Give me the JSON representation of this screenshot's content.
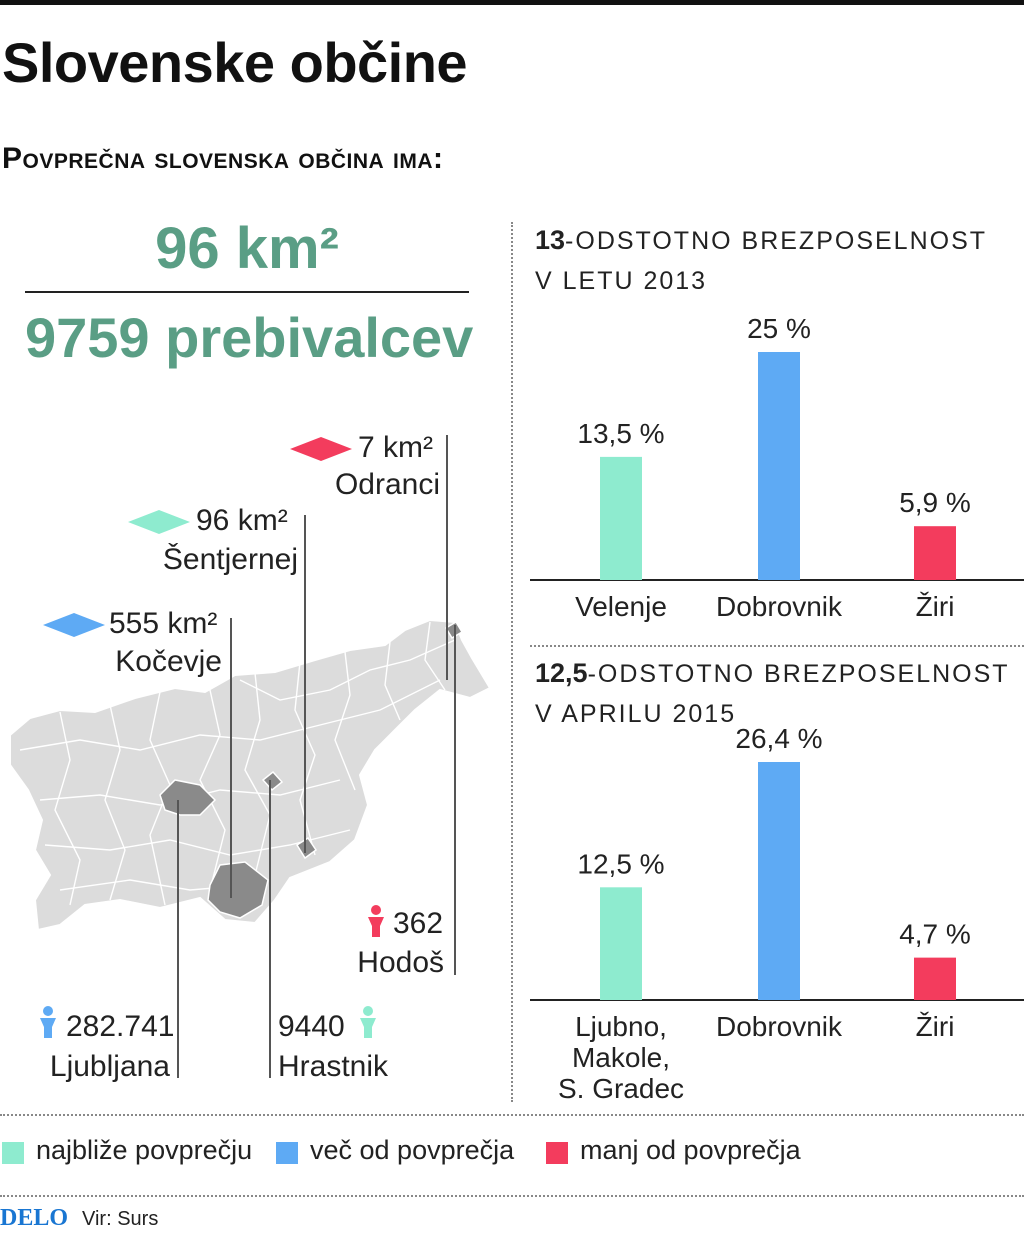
{
  "title": "Slovenske občine",
  "subtitle": "Povprečna slovenska občina ima:",
  "average": {
    "area": "96 km²",
    "population": "9759 prebivalcev"
  },
  "map_labels": {
    "odranci": {
      "value": "7 km²",
      "name": "Odranci"
    },
    "sentjernej": {
      "value": "96 km²",
      "name": "Šentjernej"
    },
    "kocevje": {
      "value": "555 km²",
      "name": "Kočevje"
    },
    "hodos": {
      "value": "362",
      "name": "Hodoš"
    },
    "ljubljana": {
      "value": "282.741",
      "name": "Ljubljana"
    },
    "hrastnik": {
      "value": "9440",
      "name": "Hrastnik"
    }
  },
  "colors": {
    "closest": "#8eebcf",
    "more": "#5eaaf4",
    "less": "#f33c5d",
    "accent_text": "#5a9e85",
    "map_fill": "#dcdcdc",
    "map_highlight": "#8a8a8a"
  },
  "icons": [
    "diamond-icon",
    "person-icon"
  ],
  "chart_data": [
    {
      "type": "bar",
      "title_num": "13",
      "title_line1": "-odstotno brezposelnost",
      "title_line2": "v letu 2013",
      "categories": [
        "Velenje",
        "Dobrovnik",
        "Žiri"
      ],
      "values": [
        13.5,
        25,
        5.9
      ],
      "labels": [
        "13,5 %",
        "25 %",
        "5,9 %"
      ],
      "groups": [
        "closest",
        "more",
        "less"
      ],
      "ylim": [
        0,
        25
      ]
    },
    {
      "type": "bar",
      "title_num": "12,5",
      "title_line1": "-odstotno brezposelnost",
      "title_line2": "v aprilu 2015",
      "categories": [
        "Ljubno,\nMakole,\nS. Gradec",
        "Dobrovnik",
        "Žiri"
      ],
      "values": [
        12.5,
        26.4,
        4.7
      ],
      "labels": [
        "12,5 %",
        "26,4 %",
        "4,7 %"
      ],
      "groups": [
        "closest",
        "more",
        "less"
      ],
      "ylim": [
        0,
        26.4
      ]
    }
  ],
  "legend": [
    {
      "key": "closest",
      "label": "najbliže povprečju"
    },
    {
      "key": "more",
      "label": "več od povprečja"
    },
    {
      "key": "less",
      "label": "manj od povprečja"
    }
  ],
  "footer": {
    "brand": "DELO",
    "source": "Vir: Surs"
  }
}
